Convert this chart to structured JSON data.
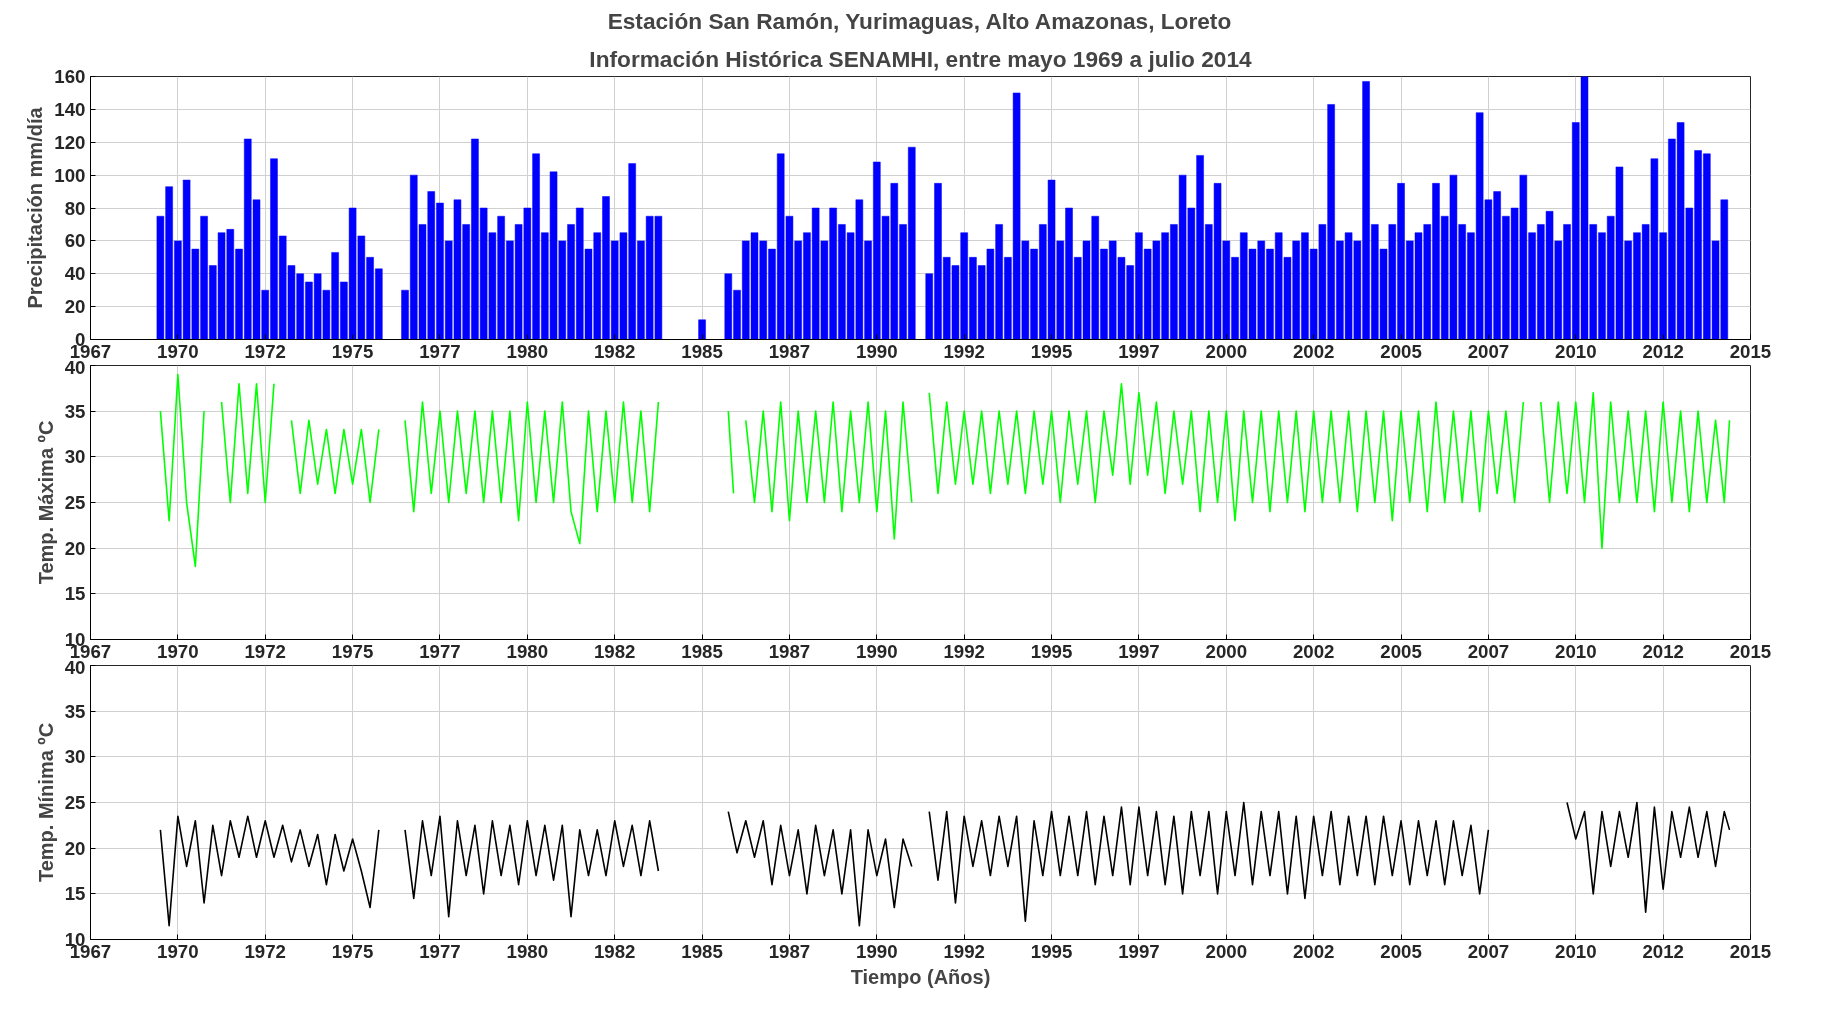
{
  "chart_data": [
    {
      "type": "bar",
      "title": "Estación San Ramón, Yurimaguas, Alto Amazonas, Loreto",
      "subtitle": "Información Histórica SENAMHI, entre mayo 1969 a julio 2014",
      "ylabel": "Precipitación mm/día",
      "color": "#0000ff",
      "grid": true,
      "xlim": [
        1967.5,
        2015
      ],
      "xticks": [
        {
          "value": 1967.5,
          "label": "1967"
        },
        {
          "value": 1970,
          "label": "1970"
        },
        {
          "value": 1972.5,
          "label": "1972"
        },
        {
          "value": 1975,
          "label": "1975"
        },
        {
          "value": 1977.5,
          "label": "1977"
        },
        {
          "value": 1980,
          "label": "1980"
        },
        {
          "value": 1982.5,
          "label": "1982"
        },
        {
          "value": 1985,
          "label": "1985"
        },
        {
          "value": 1987.5,
          "label": "1987"
        },
        {
          "value": 1990,
          "label": "1990"
        },
        {
          "value": 1992.5,
          "label": "1992"
        },
        {
          "value": 1995,
          "label": "1995"
        },
        {
          "value": 1997.5,
          "label": "1997"
        },
        {
          "value": 2000,
          "label": "2000"
        },
        {
          "value": 2002.5,
          "label": "2002"
        },
        {
          "value": 2005,
          "label": "2005"
        },
        {
          "value": 2007.5,
          "label": "2007"
        },
        {
          "value": 2010,
          "label": "2010"
        },
        {
          "value": 2012.5,
          "label": "2012"
        },
        {
          "value": 2015,
          "label": "2015"
        }
      ],
      "ylim": [
        0,
        160
      ],
      "yticks": [
        0,
        20,
        40,
        60,
        80,
        100,
        120,
        140,
        160
      ],
      "x": [
        1969.5,
        1969.75,
        1970.0,
        1970.25,
        1970.5,
        1970.75,
        1971.0,
        1971.25,
        1971.5,
        1971.75,
        1972.0,
        1972.25,
        1972.5,
        1972.75,
        1973.0,
        1973.25,
        1973.5,
        1973.75,
        1974.0,
        1974.25,
        1974.5,
        1974.75,
        1975.0,
        1975.25,
        1975.5,
        1975.75,
        1976.5,
        1976.75,
        1977.0,
        1977.25,
        1977.5,
        1977.75,
        1978.0,
        1978.25,
        1978.5,
        1978.75,
        1979.0,
        1979.25,
        1979.5,
        1979.75,
        1980.0,
        1980.25,
        1980.5,
        1980.75,
        1981.0,
        1981.25,
        1981.5,
        1981.75,
        1982.0,
        1982.25,
        1982.5,
        1982.75,
        1983.0,
        1983.25,
        1983.5,
        1983.75,
        1985.0,
        1985.75,
        1986.0,
        1986.25,
        1986.5,
        1986.75,
        1987.0,
        1987.25,
        1987.5,
        1987.75,
        1988.0,
        1988.25,
        1988.5,
        1988.75,
        1989.0,
        1989.25,
        1989.5,
        1989.75,
        1990.0,
        1990.25,
        1990.5,
        1990.75,
        1991.0,
        1991.5,
        1991.75,
        1992.0,
        1992.25,
        1992.5,
        1992.75,
        1993.0,
        1993.25,
        1993.5,
        1993.75,
        1994.0,
        1994.25,
        1994.5,
        1994.75,
        1995.0,
        1995.25,
        1995.5,
        1995.75,
        1996.0,
        1996.25,
        1996.5,
        1996.75,
        1997.0,
        1997.25,
        1997.5,
        1997.75,
        1998.0,
        1998.25,
        1998.5,
        1998.75,
        1999.0,
        1999.25,
        1999.5,
        1999.75,
        2000.0,
        2000.25,
        2000.5,
        2000.75,
        2001.0,
        2001.25,
        2001.5,
        2001.75,
        2002.0,
        2002.25,
        2002.5,
        2002.75,
        2003.0,
        2003.25,
        2003.5,
        2003.75,
        2004.0,
        2004.25,
        2004.5,
        2004.75,
        2005.0,
        2005.25,
        2005.5,
        2005.75,
        2006.0,
        2006.25,
        2006.5,
        2006.75,
        2007.0,
        2007.25,
        2007.5,
        2007.75,
        2008.0,
        2008.25,
        2008.5,
        2008.75,
        2009.0,
        2009.25,
        2009.5,
        2009.75,
        2010.0,
        2010.25,
        2010.5,
        2010.75,
        2011.0,
        2011.25,
        2011.5,
        2011.75,
        2012.0,
        2012.25,
        2012.5,
        2012.75,
        2013.0,
        2013.25,
        2013.5,
        2013.75,
        2014.0,
        2014.25
      ],
      "values": [
        75,
        93,
        60,
        97,
        55,
        75,
        45,
        65,
        67,
        55,
        122,
        85,
        30,
        110,
        63,
        45,
        40,
        35,
        40,
        30,
        53,
        35,
        80,
        63,
        50,
        43,
        30,
        100,
        70,
        90,
        83,
        60,
        85,
        70,
        122,
        80,
        65,
        75,
        60,
        70,
        80,
        113,
        65,
        102,
        60,
        70,
        80,
        55,
        65,
        87,
        60,
        65,
        107,
        60,
        75,
        75,
        12,
        40,
        30,
        60,
        65,
        60,
        55,
        113,
        75,
        60,
        65,
        80,
        60,
        80,
        70,
        65,
        85,
        60,
        108,
        75,
        95,
        70,
        117,
        40,
        95,
        50,
        45,
        65,
        50,
        45,
        55,
        70,
        50,
        150,
        60,
        55,
        70,
        97,
        60,
        80,
        50,
        60,
        75,
        55,
        60,
        50,
        45,
        65,
        55,
        60,
        65,
        70,
        100,
        80,
        112,
        70,
        95,
        60,
        50,
        65,
        55,
        60,
        55,
        65,
        50,
        60,
        65,
        55,
        70,
        143,
        60,
        65,
        60,
        157,
        70,
        55,
        70,
        95,
        60,
        65,
        70,
        95,
        75,
        100,
        70,
        65,
        138,
        85,
        90,
        75,
        80,
        100,
        65,
        70,
        78,
        60,
        70,
        132,
        160,
        70,
        65,
        75,
        105,
        60,
        65,
        70,
        110,
        65,
        122,
        132,
        80,
        115,
        113,
        60,
        85
      ]
    },
    {
      "type": "line",
      "ylabel": "Temp. Máxima ºC",
      "color": "#00ff00",
      "grid": true,
      "xlim": [
        1967.5,
        2015
      ],
      "xticks": [
        {
          "value": 1967.5,
          "label": "1967"
        },
        {
          "value": 1970,
          "label": "1970"
        },
        {
          "value": 1972.5,
          "label": "1972"
        },
        {
          "value": 1975,
          "label": "1975"
        },
        {
          "value": 1977.5,
          "label": "1977"
        },
        {
          "value": 1980,
          "label": "1980"
        },
        {
          "value": 1982.5,
          "label": "1982"
        },
        {
          "value": 1985,
          "label": "1985"
        },
        {
          "value": 1987.5,
          "label": "1987"
        },
        {
          "value": 1990,
          "label": "1990"
        },
        {
          "value": 1992.5,
          "label": "1992"
        },
        {
          "value": 1995,
          "label": "1995"
        },
        {
          "value": 1997.5,
          "label": "1997"
        },
        {
          "value": 2000,
          "label": "2000"
        },
        {
          "value": 2002.5,
          "label": "2002"
        },
        {
          "value": 2005,
          "label": "2005"
        },
        {
          "value": 2007.5,
          "label": "2007"
        },
        {
          "value": 2010,
          "label": "2010"
        },
        {
          "value": 2012.5,
          "label": "2012"
        },
        {
          "value": 2015,
          "label": "2015"
        }
      ],
      "ylim": [
        10,
        40
      ],
      "yticks": [
        10,
        15,
        20,
        25,
        30,
        35,
        40
      ],
      "x": [
        1969.5,
        1969.75,
        1970.0,
        1970.25,
        1970.5,
        1970.75,
        1971.0,
        1971.25,
        1971.5,
        1971.75,
        1972.0,
        1972.25,
        1972.5,
        1972.75,
        1973.0,
        1973.25,
        1973.5,
        1973.75,
        1974.0,
        1974.25,
        1974.5,
        1974.75,
        1975.0,
        1975.25,
        1975.5,
        1975.75,
        1976.0,
        1976.5,
        1976.75,
        1977.0,
        1977.25,
        1977.5,
        1977.75,
        1978.0,
        1978.25,
        1978.5,
        1978.75,
        1979.0,
        1979.25,
        1979.5,
        1979.75,
        1980.0,
        1980.25,
        1980.5,
        1980.75,
        1981.0,
        1981.25,
        1981.5,
        1981.75,
        1982.0,
        1982.25,
        1982.5,
        1982.75,
        1983.0,
        1983.25,
        1983.5,
        1983.75,
        1984.0,
        1985.75,
        1985.9,
        1986.1,
        1986.25,
        1986.5,
        1986.75,
        1987.0,
        1987.25,
        1987.5,
        1987.75,
        1988.0,
        1988.25,
        1988.5,
        1988.75,
        1989.0,
        1989.25,
        1989.5,
        1989.75,
        1990.0,
        1990.25,
        1990.5,
        1990.75,
        1991.0,
        1991.25,
        1991.5,
        1991.75,
        1992.0,
        1992.25,
        1992.5,
        1992.75,
        1993.0,
        1993.25,
        1993.5,
        1993.75,
        1994.0,
        1994.25,
        1994.5,
        1994.75,
        1995.0,
        1995.25,
        1995.5,
        1995.75,
        1996.0,
        1996.25,
        1996.5,
        1996.75,
        1997.0,
        1997.25,
        1997.5,
        1997.75,
        1998.0,
        1998.25,
        1998.5,
        1998.75,
        1999.0,
        1999.25,
        1999.5,
        1999.75,
        2000.0,
        2000.25,
        2000.5,
        2000.75,
        2001.0,
        2001.25,
        2001.5,
        2001.75,
        2002.0,
        2002.25,
        2002.5,
        2002.75,
        2003.0,
        2003.25,
        2003.5,
        2003.75,
        2004.0,
        2004.25,
        2004.5,
        2004.75,
        2005.0,
        2005.25,
        2005.5,
        2005.75,
        2006.0,
        2006.25,
        2006.5,
        2006.75,
        2007.0,
        2007.25,
        2007.5,
        2007.75,
        2008.0,
        2008.25,
        2008.5,
        2008.75,
        2009.0,
        2009.25,
        2009.5,
        2009.75,
        2010.0,
        2010.25,
        2010.5,
        2010.75,
        2011.0,
        2011.25,
        2011.5,
        2011.75,
        2012.0,
        2012.25,
        2012.5,
        2012.75,
        2013.0,
        2013.25,
        2013.5,
        2013.75,
        2014.0,
        2014.25,
        2014.4
      ],
      "values": [
        35,
        23,
        39,
        25,
        18,
        35,
        null,
        36,
        25,
        38,
        26,
        38,
        25,
        38,
        null,
        34,
        26,
        34,
        27,
        33,
        26,
        33,
        27,
        33,
        25,
        33,
        null,
        34,
        24,
        36,
        26,
        35,
        25,
        35,
        26,
        35,
        25,
        35,
        25,
        35,
        23,
        36,
        25,
        35,
        25,
        36,
        24,
        20.5,
        35,
        24,
        35,
        25,
        36,
        25,
        35,
        24,
        36,
        null,
        35,
        26,
        null,
        34,
        25,
        35,
        24,
        36,
        23,
        35,
        25,
        35,
        25,
        36,
        24,
        35,
        25,
        36,
        24,
        35,
        21,
        36,
        25,
        null,
        37,
        26,
        36,
        27,
        35,
        27,
        35,
        26,
        35,
        27,
        35,
        26,
        35,
        27,
        35,
        25,
        35,
        27,
        35,
        25,
        35,
        28,
        38,
        27,
        37,
        28,
        36,
        26,
        35,
        27,
        35,
        24,
        35,
        25,
        35,
        23,
        35,
        25,
        35,
        24,
        35,
        25,
        35,
        24,
        35,
        25,
        35,
        25,
        35,
        24,
        35,
        25,
        35,
        23,
        35,
        25,
        35,
        24,
        36,
        25,
        35,
        25,
        35,
        24,
        35,
        26,
        35,
        25,
        36,
        null,
        36,
        25,
        36,
        26,
        36,
        25,
        37,
        20,
        36,
        25,
        35,
        25,
        35,
        24,
        36,
        25,
        35,
        24,
        35,
        25,
        34,
        25,
        34
      ]
    },
    {
      "type": "line",
      "ylabel": "Temp. Mínima ºC",
      "xlabel": "Tiempo (Años)",
      "color": "#000000",
      "grid": true,
      "xlim": [
        1967.5,
        2015
      ],
      "xticks": [
        {
          "value": 1967.5,
          "label": "1967"
        },
        {
          "value": 1970,
          "label": "1970"
        },
        {
          "value": 1972.5,
          "label": "1972"
        },
        {
          "value": 1975,
          "label": "1975"
        },
        {
          "value": 1977.5,
          "label": "1977"
        },
        {
          "value": 1980,
          "label": "1980"
        },
        {
          "value": 1982.5,
          "label": "1982"
        },
        {
          "value": 1985,
          "label": "1985"
        },
        {
          "value": 1987.5,
          "label": "1987"
        },
        {
          "value": 1990,
          "label": "1990"
        },
        {
          "value": 1992.5,
          "label": "1992"
        },
        {
          "value": 1995,
          "label": "1995"
        },
        {
          "value": 1997.5,
          "label": "1997"
        },
        {
          "value": 2000,
          "label": "2000"
        },
        {
          "value": 2002.5,
          "label": "2002"
        },
        {
          "value": 2005,
          "label": "2005"
        },
        {
          "value": 2007.5,
          "label": "2007"
        },
        {
          "value": 2010,
          "label": "2010"
        },
        {
          "value": 2012.5,
          "label": "2012"
        },
        {
          "value": 2015,
          "label": "2015"
        }
      ],
      "ylim": [
        10,
        40
      ],
      "yticks": [
        10,
        15,
        20,
        25,
        30,
        35,
        40
      ],
      "x": [
        1969.5,
        1969.75,
        1970.0,
        1970.25,
        1970.5,
        1970.75,
        1971.0,
        1971.25,
        1971.5,
        1971.75,
        1972.0,
        1972.25,
        1972.5,
        1972.75,
        1973.0,
        1973.25,
        1973.5,
        1973.75,
        1974.0,
        1974.25,
        1974.5,
        1974.75,
        1975.0,
        1975.25,
        1975.5,
        1975.75,
        1976.0,
        1976.5,
        1976.75,
        1977.0,
        1977.25,
        1977.5,
        1977.75,
        1978.0,
        1978.25,
        1978.5,
        1978.75,
        1979.0,
        1979.25,
        1979.5,
        1979.75,
        1980.0,
        1980.25,
        1980.5,
        1980.75,
        1981.0,
        1981.25,
        1981.5,
        1981.75,
        1982.0,
        1982.25,
        1982.5,
        1982.75,
        1983.0,
        1983.25,
        1983.5,
        1983.75,
        1984.0,
        1985.75,
        1986.0,
        1986.25,
        1986.5,
        1986.75,
        1987.0,
        1987.25,
        1987.5,
        1987.75,
        1988.0,
        1988.25,
        1988.5,
        1988.75,
        1989.0,
        1989.25,
        1989.5,
        1989.75,
        1990.0,
        1990.25,
        1990.5,
        1990.75,
        1991.0,
        1991.25,
        1991.5,
        1991.75,
        1992.0,
        1992.25,
        1992.5,
        1992.75,
        1993.0,
        1993.25,
        1993.5,
        1993.75,
        1994.0,
        1994.25,
        1994.5,
        1994.75,
        1995.0,
        1995.25,
        1995.5,
        1995.75,
        1996.0,
        1996.25,
        1996.5,
        1996.75,
        1997.0,
        1997.25,
        1997.5,
        1997.75,
        1998.0,
        1998.25,
        1998.5,
        1998.75,
        1999.0,
        1999.25,
        1999.5,
        1999.75,
        2000.0,
        2000.25,
        2000.5,
        2000.75,
        2001.0,
        2001.25,
        2001.5,
        2001.75,
        2002.0,
        2002.25,
        2002.5,
        2002.75,
        2003.0,
        2003.25,
        2003.5,
        2003.75,
        2004.0,
        2004.25,
        2004.5,
        2004.75,
        2005.0,
        2005.25,
        2005.5,
        2005.75,
        2006.0,
        2006.25,
        2006.5,
        2006.75,
        2007.0,
        2007.25,
        2007.5,
        2007.75,
        2009.75,
        2010.0,
        2010.25,
        2010.5,
        2010.75,
        2011.0,
        2011.25,
        2011.5,
        2011.75,
        2012.0,
        2012.25,
        2012.5,
        2012.75,
        2013.0,
        2013.25,
        2013.5,
        2013.75,
        2014.0,
        2014.25,
        2014.4
      ],
      "values": [
        22,
        11.5,
        23.5,
        18,
        23,
        14,
        22.5,
        17,
        23,
        19,
        23.5,
        19,
        23,
        19,
        22.5,
        18.5,
        22,
        18,
        21.5,
        16,
        21.5,
        17.5,
        21,
        17.5,
        13.5,
        22,
        null,
        22,
        14.5,
        23,
        17,
        23.5,
        12.5,
        23,
        17,
        22.5,
        15,
        23,
        17,
        22.5,
        16,
        23,
        17,
        22.5,
        16.5,
        22.5,
        12.5,
        22,
        17,
        22,
        17,
        23,
        18,
        22.5,
        17,
        23,
        17.5,
        null,
        24,
        19.5,
        23,
        19,
        23,
        16,
        22.5,
        17,
        22,
        15,
        22.5,
        17,
        22,
        15,
        22,
        11.5,
        22,
        17,
        21,
        13.5,
        21,
        18,
        null,
        24,
        16.5,
        24,
        14,
        23.5,
        18,
        23,
        17,
        23.5,
        18,
        23.5,
        12,
        23,
        17,
        24,
        17,
        23.5,
        17,
        24,
        16,
        23.5,
        17,
        24.5,
        16,
        24.5,
        17,
        24,
        16,
        23.5,
        15,
        24,
        17,
        24,
        15,
        24,
        17,
        25,
        16,
        24,
        17,
        24,
        15,
        23.5,
        14.5,
        23.5,
        17,
        24,
        16,
        23.5,
        17,
        23.5,
        16,
        23.5,
        17,
        23,
        16,
        23,
        17,
        23,
        16,
        23,
        17,
        22.5,
        15,
        22,
        null,
        25,
        21,
        24,
        15,
        24,
        18,
        24,
        19,
        25,
        13,
        24.5,
        15.5,
        24,
        19,
        24.5,
        19,
        24,
        18,
        24,
        22
      ]
    }
  ]
}
